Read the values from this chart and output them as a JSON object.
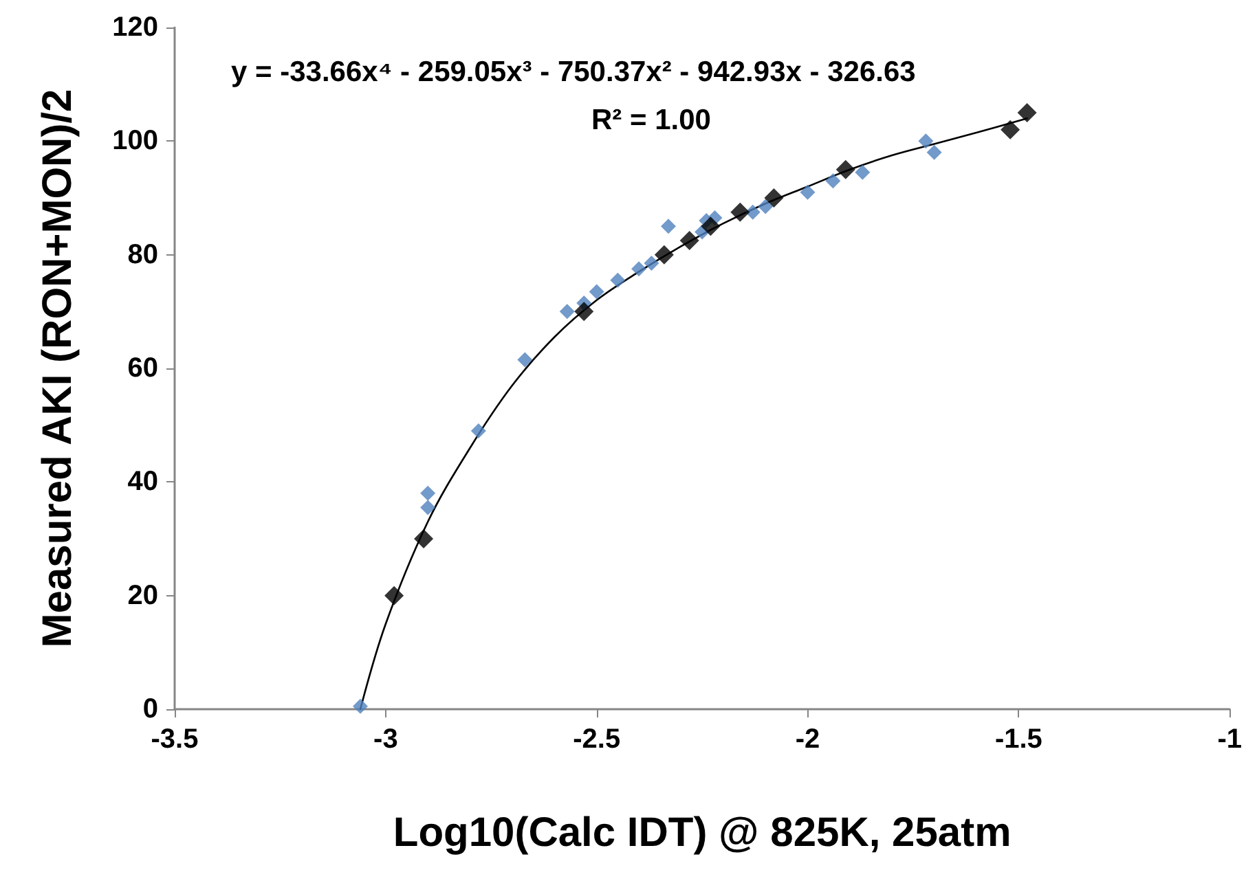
{
  "chart_data": {
    "type": "scatter",
    "xlabel": "Log10(Calc IDT) @ 825K, 25atm",
    "ylabel": "Measured AKI (RON+MON)/2",
    "annotations": [
      "y = -33.66x⁴ - 259.05x³ - 750.37x² - 942.93x - 326.63",
      "R² = 1.00"
    ],
    "xlim": [
      -3.5,
      -1
    ],
    "xticks": [
      -3.5,
      -3,
      -2.5,
      -2,
      -1.5,
      -1
    ],
    "ylim": [
      0,
      120
    ],
    "yticks": [
      0,
      20,
      40,
      60,
      80,
      100,
      120
    ],
    "grid": false,
    "marker": "diamond",
    "series": [
      {
        "type": "line",
        "color": "#000000",
        "marker": "none",
        "line_style": "solid",
        "x": [
          -3.06,
          -3.0,
          -2.9,
          -2.8,
          -2.7,
          -2.6,
          -2.5,
          -2.4,
          -2.3,
          -2.2,
          -2.1,
          -2.0,
          -1.9,
          -1.8,
          -1.7,
          -1.6,
          -1.48
        ],
        "values": [
          0,
          15,
          33,
          46,
          57,
          65.5,
          72,
          77,
          81.5,
          85.5,
          89,
          92,
          95,
          97.5,
          99.5,
          101.5,
          104
        ]
      },
      {
        "color": "#4f81bd",
        "x": [
          -3.06,
          -2.9,
          -2.9,
          -2.78,
          -2.67,
          -2.57,
          -2.53,
          -2.5,
          -2.45,
          -2.4,
          -2.37,
          -2.33,
          -2.25,
          -2.24,
          -2.22,
          -2.13,
          -2.1,
          -2.0,
          -1.94,
          -1.87,
          -1.72,
          -1.7
        ],
        "values": [
          0.5,
          38,
          35.5,
          49,
          61.5,
          70,
          71.5,
          73.5,
          75.5,
          77.5,
          78.5,
          85,
          84,
          86,
          86.5,
          87.5,
          88.5,
          91,
          93,
          94.5,
          100,
          98
        ]
      },
      {
        "color": "#000000",
        "x": [
          -2.98,
          -2.91,
          -2.53,
          -2.34,
          -2.28,
          -2.23,
          -2.16,
          -2.08,
          -1.91,
          -1.52,
          -1.48
        ],
        "values": [
          20,
          30,
          70,
          80,
          82.5,
          85,
          87.5,
          90,
          95,
          102,
          105
        ]
      }
    ]
  }
}
